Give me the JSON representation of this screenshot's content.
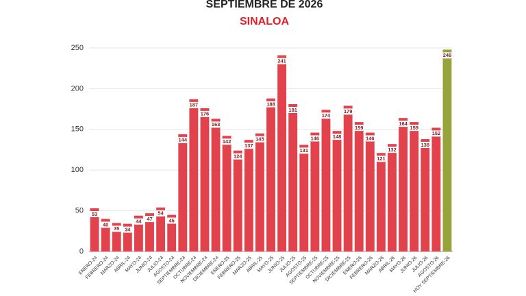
{
  "chart_data": {
    "type": "bar",
    "title": "SEPTIEMBRE DE 2026",
    "subtitle": "SINALOA",
    "categories": [
      "ENERO-24",
      "FEBRERO-24",
      "MARZO-24",
      "ABRIL-24",
      "MAYO-24",
      "JUNIO-24",
      "JULIO-24",
      "AGOSTO-24",
      "SEPTIEMBRE-24",
      "OCTUBRE-24",
      "NOVIEMBRE-24",
      "DICIEMBRE-24",
      "ENERO-25",
      "FEBRERO-25",
      "MARZO-25",
      "ABRIL-25",
      "MAYO-25",
      "JUNIO-25",
      "JULIO-25",
      "AGOSTO-25",
      "SEPTIEMBRE-25",
      "OCTUBRE-25",
      "NOVIEMBRE-25",
      "DICIEMBRE-25",
      "ENERO-26",
      "FEBRERO-26",
      "MARZO-26",
      "ABRIL-26",
      "MAYO-26",
      "JUNIO-26",
      "JULIO-26",
      "AGOSTO-26",
      "HOY SEPTIEMBRE-26"
    ],
    "values": [
      53,
      40,
      35,
      34,
      44,
      47,
      54,
      45,
      144,
      187,
      176,
      163,
      142,
      124,
      137,
      145,
      188,
      241,
      181,
      131,
      146,
      174,
      148,
      179,
      159,
      146,
      121,
      132,
      164,
      159,
      138,
      152,
      248
    ],
    "colors": [
      "#e2424b",
      "#e2424b",
      "#e2424b",
      "#e2424b",
      "#e2424b",
      "#e2424b",
      "#e2424b",
      "#e2424b",
      "#e2424b",
      "#e2424b",
      "#e2424b",
      "#e2424b",
      "#e2424b",
      "#e2424b",
      "#e2424b",
      "#e2424b",
      "#e2424b",
      "#e2424b",
      "#e2424b",
      "#e2424b",
      "#e2424b",
      "#e2424b",
      "#e2424b",
      "#e2424b",
      "#e2424b",
      "#e2424b",
      "#e2424b",
      "#e2424b",
      "#e2424b",
      "#e2424b",
      "#e2424b",
      "#e2424b",
      "#97a43c"
    ],
    "ylim": [
      0,
      250
    ],
    "yticks": [
      0,
      50,
      100,
      150,
      200,
      250
    ],
    "grid": true
  }
}
